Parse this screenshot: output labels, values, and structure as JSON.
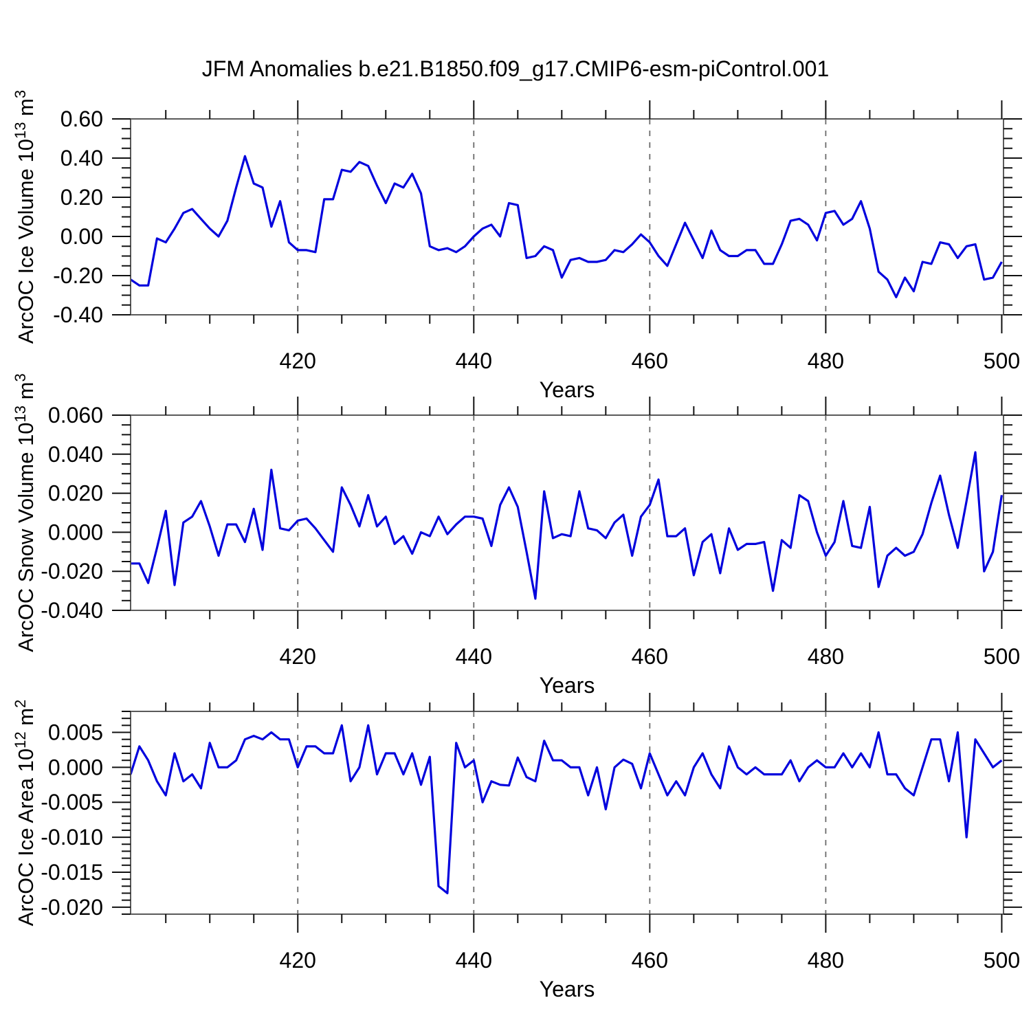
{
  "title": "JFM Anomalies b.e21.B1850.f09_g17.CMIP6-esm-piControl.001",
  "colors": {
    "line": "#0202dd",
    "frame": "#5a5a5a",
    "tick": "#111111",
    "grid": "#6a6a6a",
    "text": "#000000"
  },
  "years": [
    401,
    402,
    403,
    404,
    405,
    406,
    407,
    408,
    409,
    410,
    411,
    412,
    413,
    414,
    415,
    416,
    417,
    418,
    419,
    420,
    421,
    422,
    423,
    424,
    425,
    426,
    427,
    428,
    429,
    430,
    431,
    432,
    433,
    434,
    435,
    436,
    437,
    438,
    439,
    440,
    441,
    442,
    443,
    444,
    445,
    446,
    447,
    448,
    449,
    450,
    451,
    452,
    453,
    454,
    455,
    456,
    457,
    458,
    459,
    460,
    461,
    462,
    463,
    464,
    465,
    466,
    467,
    468,
    469,
    470,
    471,
    472,
    473,
    474,
    475,
    476,
    477,
    478,
    479,
    480,
    481,
    482,
    483,
    484,
    485,
    486,
    487,
    488,
    489,
    490,
    491,
    492,
    493,
    494,
    495,
    496,
    497,
    498,
    499,
    500
  ],
  "chart_data": [
    {
      "type": "line",
      "name": "ice-volume",
      "ylabel_parts": [
        {
          "t": "ArcOC Ice Volume 10"
        },
        {
          "t": "13",
          "sup": true
        },
        {
          "t": " m"
        },
        {
          "t": "3",
          "sup": true
        }
      ],
      "xlabel": "Years",
      "xlim": [
        401,
        500.2
      ],
      "ylim": [
        -0.4,
        0.6
      ],
      "x_ticks": [
        420,
        440,
        460,
        480,
        500
      ],
      "x_minor_step": 5,
      "y_ticks": [
        0.6,
        0.4,
        0.2,
        0.0,
        -0.2,
        -0.4
      ],
      "y_minor_step": 0.05,
      "y_decimals": 2,
      "grid_x": [
        420,
        440,
        460,
        480
      ],
      "values": [
        -0.22,
        -0.25,
        -0.25,
        -0.01,
        -0.03,
        0.04,
        0.12,
        0.14,
        0.09,
        0.04,
        0.0,
        0.08,
        0.25,
        0.41,
        0.27,
        0.25,
        0.05,
        0.18,
        -0.03,
        -0.07,
        -0.07,
        -0.08,
        0.19,
        0.19,
        0.34,
        0.33,
        0.38,
        0.36,
        0.26,
        0.17,
        0.27,
        0.25,
        0.32,
        0.22,
        -0.05,
        -0.07,
        -0.06,
        -0.08,
        -0.05,
        0.0,
        0.04,
        0.06,
        0.0,
        0.17,
        0.16,
        -0.11,
        -0.1,
        -0.05,
        -0.07,
        -0.21,
        -0.12,
        -0.11,
        -0.13,
        -0.13,
        -0.12,
        -0.07,
        -0.08,
        -0.04,
        0.01,
        -0.03,
        -0.1,
        -0.15,
        -0.04,
        0.07,
        -0.02,
        -0.11,
        0.03,
        -0.07,
        -0.1,
        -0.1,
        -0.07,
        -0.07,
        -0.14,
        -0.14,
        -0.04,
        0.08,
        0.09,
        0.06,
        -0.02,
        0.12,
        0.13,
        0.06,
        0.09,
        0.18,
        0.04,
        -0.18,
        -0.22,
        -0.31,
        -0.21,
        -0.28,
        -0.13,
        -0.14,
        -0.03,
        -0.04,
        -0.11,
        -0.05,
        -0.04,
        -0.22,
        -0.21,
        -0.13
      ]
    },
    {
      "type": "line",
      "name": "snow-volume",
      "ylabel_parts": [
        {
          "t": "ArcOC Snow Volume 10"
        },
        {
          "t": "13",
          "sup": true
        },
        {
          "t": " m"
        },
        {
          "t": "3",
          "sup": true
        }
      ],
      "xlabel": "Years",
      "xlim": [
        401,
        500.2
      ],
      "ylim": [
        -0.04,
        0.06
      ],
      "x_ticks": [
        420,
        440,
        460,
        480,
        500
      ],
      "x_minor_step": 5,
      "y_ticks": [
        0.06,
        0.04,
        0.02,
        0.0,
        -0.02,
        -0.04
      ],
      "y_minor_step": 0.005,
      "y_decimals": 3,
      "grid_x": [
        420,
        440,
        460,
        480
      ],
      "values": [
        -0.016,
        -0.016,
        -0.026,
        -0.008,
        0.011,
        -0.027,
        0.005,
        0.008,
        0.016,
        0.003,
        -0.012,
        0.004,
        0.004,
        -0.005,
        0.012,
        -0.009,
        0.032,
        0.002,
        0.001,
        0.006,
        0.007,
        0.002,
        -0.004,
        -0.01,
        0.023,
        0.014,
        0.003,
        0.019,
        0.003,
        0.008,
        -0.006,
        -0.002,
        -0.011,
        0.0,
        -0.002,
        0.008,
        -0.001,
        0.004,
        0.008,
        0.008,
        0.007,
        -0.007,
        0.014,
        0.023,
        0.013,
        -0.01,
        -0.034,
        0.021,
        -0.003,
        -0.001,
        -0.002,
        0.021,
        0.002,
        0.001,
        -0.003,
        0.005,
        0.009,
        -0.012,
        0.008,
        0.014,
        0.027,
        -0.002,
        -0.002,
        0.002,
        -0.022,
        -0.005,
        -0.001,
        -0.021,
        0.002,
        -0.009,
        -0.006,
        -0.006,
        -0.005,
        -0.03,
        -0.004,
        -0.008,
        0.019,
        0.016,
        0.0,
        -0.012,
        -0.005,
        0.016,
        -0.007,
        -0.008,
        0.013,
        -0.028,
        -0.012,
        -0.008,
        -0.012,
        -0.01,
        -0.001,
        0.015,
        0.029,
        0.009,
        -0.008,
        0.016,
        0.041,
        -0.02,
        -0.01,
        0.019
      ]
    },
    {
      "type": "line",
      "name": "ice-area",
      "ylabel_parts": [
        {
          "t": "ArcOC Ice Area 10"
        },
        {
          "t": "12",
          "sup": true
        },
        {
          "t": " m"
        },
        {
          "t": "2",
          "sup": true
        }
      ],
      "xlabel": "Years",
      "xlim": [
        401,
        500.2
      ],
      "ylim": [
        -0.021,
        0.008
      ],
      "x_ticks": [
        420,
        440,
        460,
        480,
        500
      ],
      "x_minor_step": 5,
      "y_ticks": [
        0.005,
        0.0,
        -0.005,
        -0.01,
        -0.015,
        -0.02
      ],
      "y_minor_step": 0.001,
      "y_decimals": 3,
      "grid_x": [
        420,
        440,
        460,
        480
      ],
      "values": [
        -0.001,
        0.003,
        0.001,
        -0.002,
        -0.004,
        0.002,
        -0.002,
        -0.001,
        -0.003,
        0.0035,
        0.0,
        0.0,
        0.001,
        0.004,
        0.0045,
        0.004,
        0.005,
        0.004,
        0.004,
        0.0,
        0.003,
        0.003,
        0.002,
        0.002,
        0.006,
        -0.002,
        0.0,
        0.006,
        -0.001,
        0.002,
        0.002,
        -0.001,
        0.002,
        -0.0025,
        0.0015,
        -0.017,
        -0.018,
        0.0035,
        0.0,
        0.001,
        -0.005,
        -0.002,
        -0.0025,
        -0.0026,
        0.0014,
        -0.0014,
        -0.002,
        0.0038,
        0.001,
        0.001,
        0.0,
        0.0,
        -0.004,
        0.0,
        -0.006,
        0.0,
        0.0011,
        0.0005,
        -0.003,
        0.002,
        -0.001,
        -0.004,
        -0.002,
        -0.004,
        0.0,
        0.002,
        -0.001,
        -0.003,
        0.003,
        0.0,
        -0.001,
        0.0,
        -0.001,
        -0.001,
        -0.001,
        0.001,
        -0.002,
        0.0,
        0.001,
        0.0,
        0.0,
        0.002,
        0.0,
        0.002,
        0.0,
        0.005,
        -0.001,
        -0.001,
        -0.003,
        -0.004,
        0.0,
        0.004,
        0.004,
        -0.002,
        0.005,
        -0.01,
        0.004,
        0.002,
        0.0,
        0.001
      ]
    }
  ]
}
